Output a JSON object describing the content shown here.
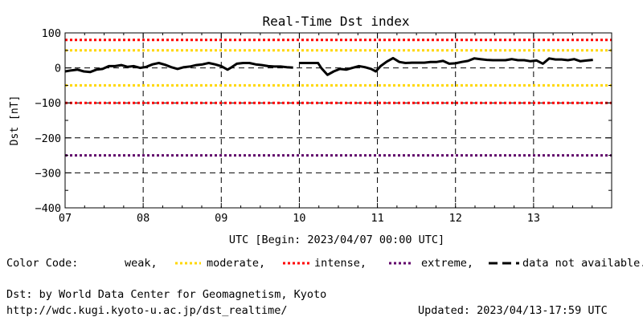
{
  "chart_data": {
    "type": "line",
    "title": "Real-Time Dst index",
    "ylabel": "Dst [nT]",
    "xlabel": "UTC [Begin: 2023/04/07 00:00 UTC]",
    "xlim": [
      7,
      14
    ],
    "ylim": [
      -400,
      100
    ],
    "x_ticks": [
      7,
      8,
      9,
      10,
      11,
      12,
      13
    ],
    "x_tick_labels": [
      "07",
      "08",
      "09",
      "10",
      "11",
      "12",
      "13"
    ],
    "y_ticks": [
      100,
      0,
      -100,
      -200,
      -300,
      -400
    ],
    "y_tick_labels": [
      "100",
      "0",
      "−100",
      "−200",
      "−300",
      "−400"
    ],
    "grid": true,
    "thresholds": [
      {
        "value": 80,
        "color": "#ff0000"
      },
      {
        "value": 50,
        "color": "#ffd700"
      },
      {
        "value": -50,
        "color": "#ffd700"
      },
      {
        "value": -100,
        "color": "#ff0000"
      },
      {
        "value": -250,
        "color": "#60006a"
      }
    ],
    "series": [
      {
        "color": "#000000",
        "segments": [
          [
            [
              7.0,
              -10
            ],
            [
              7.08,
              -7
            ],
            [
              7.16,
              -5
            ],
            [
              7.24,
              -10
            ],
            [
              7.32,
              -12
            ],
            [
              7.4,
              -5
            ],
            [
              7.48,
              -3
            ],
            [
              7.56,
              5
            ],
            [
              7.64,
              5
            ],
            [
              7.72,
              8
            ],
            [
              7.8,
              3
            ],
            [
              7.88,
              5
            ],
            [
              7.96,
              0
            ],
            [
              8.04,
              3
            ],
            [
              8.12,
              10
            ],
            [
              8.2,
              14
            ],
            [
              8.28,
              9
            ],
            [
              8.36,
              2
            ],
            [
              8.44,
              -3
            ],
            [
              8.52,
              2
            ],
            [
              8.6,
              4
            ],
            [
              8.68,
              8
            ],
            [
              8.76,
              10
            ],
            [
              8.84,
              14
            ],
            [
              8.92,
              10
            ],
            [
              9.0,
              5
            ],
            [
              9.08,
              -5
            ],
            [
              9.12,
              0
            ],
            [
              9.2,
              12
            ],
            [
              9.28,
              14
            ],
            [
              9.36,
              14
            ],
            [
              9.44,
              10
            ],
            [
              9.52,
              8
            ],
            [
              9.6,
              5
            ],
            [
              9.68,
              4
            ],
            [
              9.76,
              4
            ],
            [
              9.84,
              2
            ],
            [
              9.92,
              1
            ]
          ],
          [
            [
              10.0,
              14
            ],
            [
              10.08,
              14
            ],
            [
              10.16,
              14
            ],
            [
              10.24,
              14
            ],
            [
              10.28,
              0
            ],
            [
              10.36,
              -20
            ],
            [
              10.44,
              -10
            ],
            [
              10.52,
              -3
            ],
            [
              10.6,
              -5
            ],
            [
              10.68,
              0
            ],
            [
              10.76,
              5
            ],
            [
              10.84,
              2
            ],
            [
              10.92,
              -3
            ],
            [
              10.98,
              -10
            ],
            [
              11.04,
              5
            ],
            [
              11.12,
              18
            ],
            [
              11.2,
              28
            ],
            [
              11.28,
              17
            ],
            [
              11.36,
              14
            ],
            [
              11.44,
              15
            ],
            [
              11.52,
              15
            ],
            [
              11.6,
              15
            ],
            [
              11.68,
              17
            ],
            [
              11.76,
              17
            ],
            [
              11.84,
              20
            ],
            [
              11.92,
              12
            ],
            [
              12.0,
              13
            ],
            [
              12.08,
              17
            ],
            [
              12.16,
              20
            ],
            [
              12.24,
              27
            ],
            [
              12.32,
              25
            ],
            [
              12.4,
              23
            ],
            [
              12.48,
              22
            ],
            [
              12.56,
              22
            ],
            [
              12.64,
              22
            ],
            [
              12.72,
              25
            ],
            [
              12.8,
              22
            ],
            [
              12.88,
              22
            ],
            [
              12.96,
              19
            ],
            [
              13.04,
              21
            ],
            [
              13.12,
              12
            ],
            [
              13.2,
              27
            ],
            [
              13.28,
              24
            ],
            [
              13.36,
              24
            ],
            [
              13.44,
              22
            ],
            [
              13.52,
              25
            ],
            [
              13.6,
              19
            ],
            [
              13.68,
              21
            ],
            [
              13.76,
              23
            ]
          ]
        ]
      }
    ]
  },
  "legend": {
    "color_code_label": "Color Code:",
    "weak_label": "weak,",
    "moderate_label": "moderate,",
    "intense_label": "intense,",
    "extreme_label": "extreme,",
    "not_available_label": "data not available.",
    "moderate_color": "#ffd700",
    "intense_color": "#ff0000",
    "extreme_color": "#60006a"
  },
  "footer": {
    "source": "Dst: by World Data Center for Geomagnetism, Kyoto",
    "url": "http://wdc.kugi.kyoto-u.ac.jp/dst_realtime/",
    "updated": "Updated: 2023/04/13-17:59 UTC"
  }
}
